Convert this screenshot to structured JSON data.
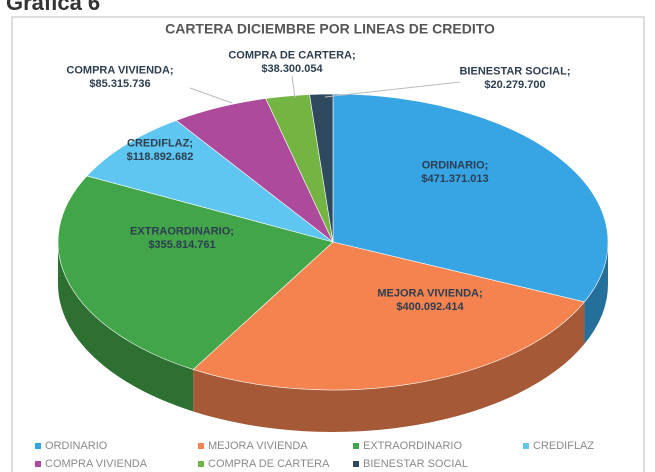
{
  "heading": "Grafica 6",
  "chart_data": {
    "type": "pie3d",
    "title": "CARTERA DICIEMBRE POR LINEAS DE CREDITO",
    "categories": [
      "ORDINARIO",
      "MEJORA VIVIENDA",
      "EXTRAORDINARIO",
      "CREDIFLAZ",
      "COMPRA VIVIENDA",
      "COMPRA DE CARTERA",
      "BIENESTAR SOCIAL"
    ],
    "values": [
      471371013,
      400092414,
      355814761,
      118892682,
      85315736,
      38300054,
      20279700
    ],
    "value_labels": [
      "$471.371.013",
      "$400.092.414",
      "$355.814.761",
      "$118.892.682",
      "$85.315.736",
      "$38.300.054",
      "$20.279.700"
    ],
    "label_separator": ";",
    "colors": [
      "#37a4e4",
      "#f4834f",
      "#43a549",
      "#5ec6f0",
      "#ae4a9b",
      "#74b443",
      "#2f4a5e"
    ],
    "legend": "bottom"
  }
}
